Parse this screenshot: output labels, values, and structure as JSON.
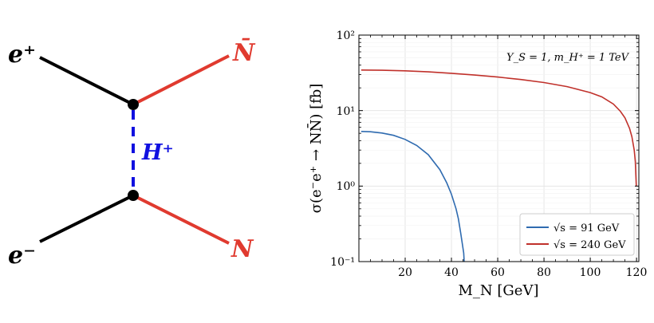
{
  "diagram": {
    "labels": {
      "e_plus": "e⁺",
      "n_bar": "N̄",
      "mediator": "H⁺",
      "e_minus": "e⁻",
      "n": "N"
    },
    "colors": {
      "lepton": "#000000",
      "neutral": "#e03a2f",
      "mediator": "#1010e0"
    }
  },
  "chart_data": {
    "type": "line",
    "xlabel": "M_N [GeV]",
    "ylabel": "σ(e⁻e⁺ → NN̄) [fb]",
    "annotation": "Y_S = 1, m_H⁺ = 1 TeV",
    "xlim": [
      0,
      121
    ],
    "ylim": [
      0.1,
      100
    ],
    "yscale": "log",
    "x_ticks": [
      20,
      40,
      60,
      80,
      100,
      120
    ],
    "x_tick_labels": [
      "20",
      "40",
      "60",
      "80",
      "100",
      "120"
    ],
    "y_tick_labels": [
      "10⁻¹",
      "10⁰",
      "10¹",
      "10²"
    ],
    "grid": true,
    "legend_position": "lower-right",
    "series": [
      {
        "name": "√s = 91 GeV",
        "color": "#2f6bb0",
        "x": [
          1,
          5,
          10,
          15,
          20,
          25,
          30,
          35,
          38,
          40,
          42,
          43,
          44,
          45,
          45.3,
          45.5
        ],
        "y": [
          5.3,
          5.25,
          5.05,
          4.7,
          4.15,
          3.45,
          2.6,
          1.65,
          1.1,
          0.78,
          0.5,
          0.37,
          0.24,
          0.15,
          0.13,
          0.1
        ]
      },
      {
        "name": "√s = 240 GeV",
        "color": "#c0312b",
        "x": [
          1,
          10,
          20,
          30,
          40,
          50,
          60,
          70,
          80,
          90,
          100,
          105,
          110,
          113,
          115,
          117,
          118,
          119,
          119.5,
          119.9
        ],
        "y": [
          34.5,
          34.2,
          33.6,
          32.6,
          31.2,
          29.6,
          27.8,
          25.8,
          23.5,
          20.8,
          17.3,
          15.2,
          12.2,
          9.8,
          8.0,
          5.8,
          4.5,
          3.0,
          2.1,
          1.0
        ]
      }
    ]
  }
}
